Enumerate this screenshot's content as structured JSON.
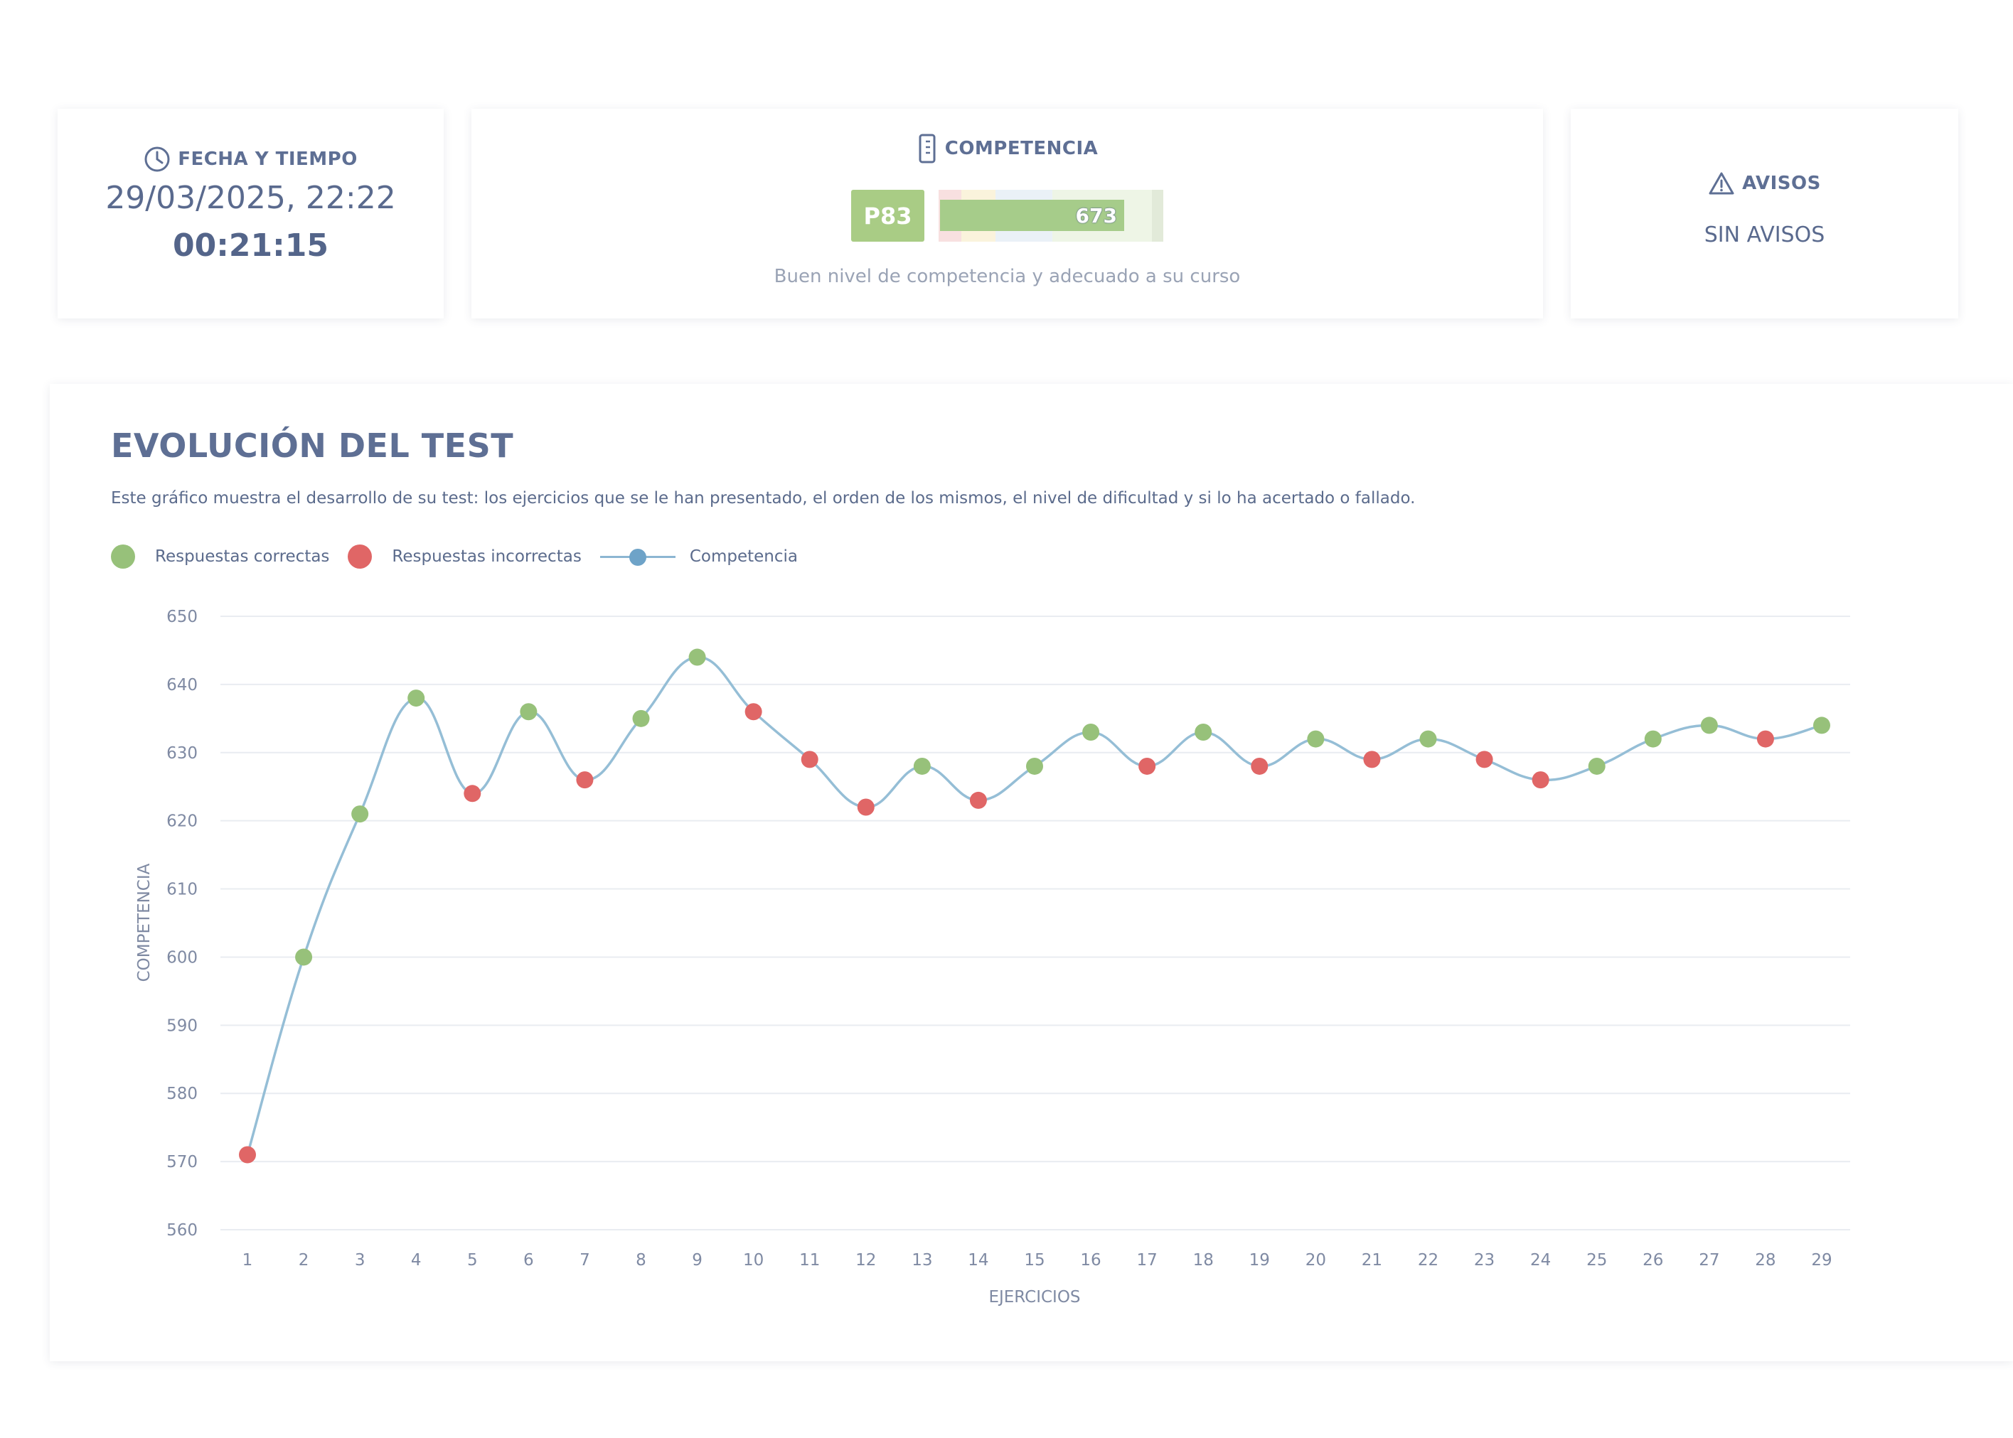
{
  "date_card": {
    "title": "FECHA Y TIEMPO",
    "icon": "clock-icon",
    "date": "29/03/2025, 22:22",
    "time": "00:21:15"
  },
  "competence_card": {
    "title": "COMPETENCIA",
    "icon": "ruler-icon",
    "percentile": "P83",
    "score": "673",
    "score_fill_fraction": 0.83,
    "description": "Buen nivel de competencia y adecuado a su curso"
  },
  "alerts_card": {
    "title": "AVISOS",
    "icon": "warning-icon",
    "value": "SIN AVISOS"
  },
  "chart_section": {
    "title": "EVOLUCIÓN DEL TEST",
    "description": "Este gráfico muestra el desarrollo de su test: los ejercicios que se le han presentado, el orden de los mismos, el nivel de dificultad y si lo ha acertado o fallado.",
    "legend": {
      "correct": "Respuestas correctas",
      "incorrect": "Respuestas incorrectas",
      "competence": "Competencia"
    }
  },
  "colors": {
    "correct": "#97c17a",
    "incorrect": "#e06666",
    "line": "#95bed6",
    "line_marker": "#6ea3c8",
    "grid": "#e9ecf1"
  },
  "chart_data": {
    "type": "line",
    "xlabel": "EJERCICIOS",
    "ylabel": "COMPETENCIA",
    "ylim": [
      560,
      650
    ],
    "yticks": [
      560,
      570,
      580,
      590,
      600,
      610,
      620,
      630,
      640,
      650
    ],
    "x": [
      1,
      2,
      3,
      4,
      5,
      6,
      7,
      8,
      9,
      10,
      11,
      12,
      13,
      14,
      15,
      16,
      17,
      18,
      19,
      20,
      21,
      22,
      23,
      24,
      25,
      26,
      27,
      28,
      29
    ],
    "series": [
      {
        "name": "Competencia",
        "values": [
          571,
          600,
          621,
          638,
          624,
          636,
          626,
          635,
          644,
          636,
          629,
          622,
          628,
          623,
          628,
          633,
          628,
          633,
          628,
          632,
          629,
          632,
          629,
          626,
          628,
          632,
          634,
          632,
          634
        ]
      }
    ],
    "outcomes": [
      "incorrect",
      "correct",
      "correct",
      "correct",
      "incorrect",
      "correct",
      "incorrect",
      "correct",
      "correct",
      "incorrect",
      "incorrect",
      "incorrect",
      "correct",
      "incorrect",
      "correct",
      "correct",
      "incorrect",
      "correct",
      "incorrect",
      "correct",
      "incorrect",
      "correct",
      "incorrect",
      "incorrect",
      "correct",
      "correct",
      "correct",
      "incorrect",
      "correct"
    ],
    "grid": true,
    "legend_position": "top-left"
  }
}
